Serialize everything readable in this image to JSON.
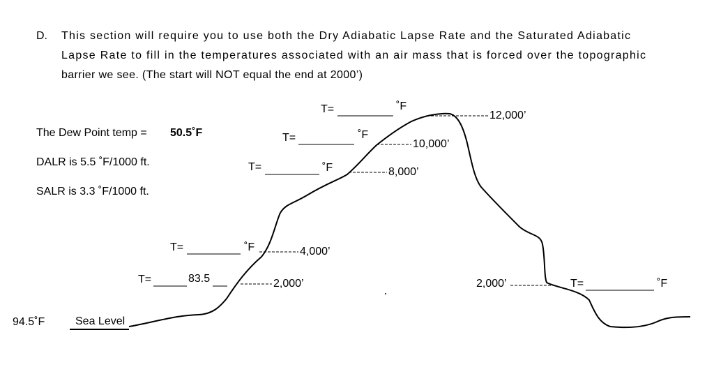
{
  "question": {
    "label": "D.",
    "lines": [
      "This section will require you to use both the Dry Adiabatic Lapse Rate and the Saturated Adiabatic",
      "Lapse Rate to fill in the temperatures associated with an air mass that is forced over the topographic",
      "barrier we see.  (The start will NOT equal the end at 2000’)"
    ]
  },
  "given": {
    "dew_point_label": "The Dew Point temp =",
    "dew_point_value": "50.5˚F",
    "dalr": "DALR is 5.5 ˚F/1000 ft.",
    "salr": "SALR is 3.3 ˚F/1000 ft."
  },
  "elevations": [
    "12,000’",
    "10,000’",
    "8,000’",
    "4,000’",
    "2,000’",
    "2,000’"
  ],
  "blanks": [
    {
      "label": "T=",
      "unit": "˚F"
    },
    {
      "label": "T=",
      "unit": "˚F"
    },
    {
      "label": "T=",
      "unit": "˚F"
    },
    {
      "label": "T=",
      "unit": "˚F"
    },
    {
      "label": "T=",
      "value": "83.5"
    },
    {
      "label": "T=",
      "unit": "˚F"
    }
  ],
  "sea_level": {
    "temp": "94.5˚F",
    "label": "Sea Level"
  }
}
